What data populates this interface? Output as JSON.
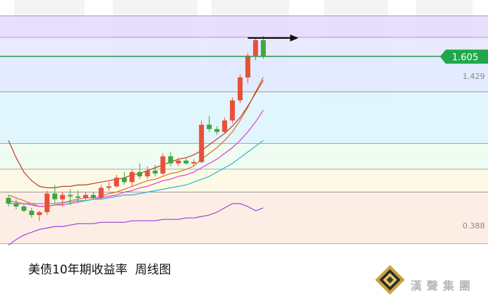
{
  "caption": "美债10年期收益率  周线图",
  "logo": {
    "text": "漢聲集團",
    "icon": "hansheng-diamond-logo"
  },
  "colors": {
    "up": "#e8503a",
    "down": "#3aa83c",
    "ma_short": "#e0701c",
    "ma_mid": "#e23bd1",
    "ma_long": "#2ab2d8",
    "lower_band": "#9a3fe0",
    "upper_band": "#c0392b",
    "level_tag": "#1fa84a",
    "arrow": "#111111"
  },
  "chart_data": {
    "type": "candlestick",
    "title": "美债10年期收益率  周线图",
    "xlabel": "",
    "ylabel": "",
    "ylim": [
      0.23,
      2.0
    ],
    "price_labels": [
      {
        "value": 1.605,
        "text": "1.605",
        "style": "tag"
      },
      {
        "value": 1.429,
        "text": "1.429",
        "style": "plain"
      },
      {
        "value": 0.388,
        "text": "0.388",
        "style": "plain"
      }
    ],
    "bands": [
      {
        "from": 1.74,
        "to": 1.89,
        "color": "#e4d9ff"
      },
      {
        "from": 1.61,
        "to": 1.74,
        "color": "#e6e6ff"
      },
      {
        "from": 1.36,
        "to": 1.61,
        "color": "#dde8ff"
      },
      {
        "from": 1.0,
        "to": 1.36,
        "color": "#dcf3fb"
      },
      {
        "from": 0.82,
        "to": 1.0,
        "color": "#ebfbef"
      },
      {
        "from": 0.66,
        "to": 0.82,
        "color": "#fbf9e3"
      },
      {
        "from": 0.3,
        "to": 0.66,
        "color": "#fdebe0"
      }
    ],
    "candles": [
      {
        "o": 0.62,
        "h": 0.64,
        "l": 0.56,
        "c": 0.58
      },
      {
        "o": 0.58,
        "h": 0.61,
        "l": 0.54,
        "c": 0.56
      },
      {
        "o": 0.56,
        "h": 0.58,
        "l": 0.52,
        "c": 0.53
      },
      {
        "o": 0.53,
        "h": 0.55,
        "l": 0.48,
        "c": 0.5
      },
      {
        "o": 0.5,
        "h": 0.53,
        "l": 0.46,
        "c": 0.52
      },
      {
        "o": 0.52,
        "h": 0.67,
        "l": 0.5,
        "c": 0.65
      },
      {
        "o": 0.65,
        "h": 0.71,
        "l": 0.58,
        "c": 0.61
      },
      {
        "o": 0.61,
        "h": 0.66,
        "l": 0.56,
        "c": 0.64
      },
      {
        "o": 0.64,
        "h": 0.68,
        "l": 0.57,
        "c": 0.63
      },
      {
        "o": 0.63,
        "h": 0.67,
        "l": 0.59,
        "c": 0.62
      },
      {
        "o": 0.62,
        "h": 0.66,
        "l": 0.6,
        "c": 0.64
      },
      {
        "o": 0.64,
        "h": 0.66,
        "l": 0.61,
        "c": 0.62
      },
      {
        "o": 0.62,
        "h": 0.71,
        "l": 0.61,
        "c": 0.69
      },
      {
        "o": 0.69,
        "h": 0.73,
        "l": 0.67,
        "c": 0.7
      },
      {
        "o": 0.7,
        "h": 0.78,
        "l": 0.69,
        "c": 0.76
      },
      {
        "o": 0.76,
        "h": 0.8,
        "l": 0.71,
        "c": 0.73
      },
      {
        "o": 0.73,
        "h": 0.82,
        "l": 0.7,
        "c": 0.8
      },
      {
        "o": 0.8,
        "h": 0.86,
        "l": 0.75,
        "c": 0.77
      },
      {
        "o": 0.77,
        "h": 0.84,
        "l": 0.75,
        "c": 0.81
      },
      {
        "o": 0.81,
        "h": 0.85,
        "l": 0.77,
        "c": 0.79
      },
      {
        "o": 0.79,
        "h": 0.93,
        "l": 0.78,
        "c": 0.91
      },
      {
        "o": 0.91,
        "h": 0.94,
        "l": 0.84,
        "c": 0.86
      },
      {
        "o": 0.86,
        "h": 0.9,
        "l": 0.84,
        "c": 0.88
      },
      {
        "o": 0.88,
        "h": 0.9,
        "l": 0.85,
        "c": 0.86
      },
      {
        "o": 0.86,
        "h": 0.89,
        "l": 0.84,
        "c": 0.87
      },
      {
        "o": 0.87,
        "h": 1.16,
        "l": 0.86,
        "c": 1.13
      },
      {
        "o": 1.13,
        "h": 1.19,
        "l": 1.08,
        "c": 1.1
      },
      {
        "o": 1.1,
        "h": 1.12,
        "l": 1.06,
        "c": 1.08
      },
      {
        "o": 1.08,
        "h": 1.18,
        "l": 1.07,
        "c": 1.16
      },
      {
        "o": 1.16,
        "h": 1.32,
        "l": 1.14,
        "c": 1.3
      },
      {
        "o": 1.3,
        "h": 1.48,
        "l": 1.28,
        "c": 1.46
      },
      {
        "o": 1.46,
        "h": 1.63,
        "l": 1.42,
        "c": 1.61
      },
      {
        "o": 1.61,
        "h": 1.74,
        "l": 1.58,
        "c": 1.72
      },
      {
        "o": 1.72,
        "h": 1.75,
        "l": 1.59,
        "c": 1.605
      }
    ],
    "series": [
      {
        "name": "",
        "color": "#e0701c",
        "values": [
          0.64,
          0.62,
          0.6,
          0.58,
          0.56,
          0.56,
          0.57,
          0.58,
          0.6,
          0.61,
          0.62,
          0.62,
          0.63,
          0.65,
          0.66,
          0.68,
          0.7,
          0.72,
          0.74,
          0.75,
          0.77,
          0.79,
          0.8,
          0.82,
          0.84,
          0.89,
          0.93,
          0.97,
          1.02,
          1.08,
          1.16,
          1.25,
          1.36,
          1.46
        ]
      },
      {
        "name": "",
        "color": "#e23bd1",
        "values": [
          0.6,
          0.59,
          0.58,
          0.57,
          0.56,
          0.56,
          0.57,
          0.57,
          0.58,
          0.59,
          0.6,
          0.61,
          0.62,
          0.63,
          0.64,
          0.66,
          0.67,
          0.69,
          0.7,
          0.72,
          0.74,
          0.75,
          0.77,
          0.78,
          0.8,
          0.83,
          0.86,
          0.89,
          0.93,
          0.97,
          1.02,
          1.08,
          1.15,
          1.23
        ]
      },
      {
        "name": "",
        "color": "#2ab2d8",
        "values": [
          0.58,
          0.58,
          0.58,
          0.58,
          0.58,
          0.58,
          0.58,
          0.59,
          0.59,
          0.6,
          0.6,
          0.61,
          0.61,
          0.62,
          0.63,
          0.64,
          0.64,
          0.65,
          0.66,
          0.67,
          0.68,
          0.69,
          0.7,
          0.71,
          0.73,
          0.75,
          0.77,
          0.8,
          0.83,
          0.86,
          0.9,
          0.94,
          0.98,
          1.02
        ]
      },
      {
        "name": "",
        "color": "#9a3fe0",
        "values": [
          0.29,
          0.33,
          0.36,
          0.38,
          0.4,
          0.41,
          0.42,
          0.42,
          0.43,
          0.44,
          0.44,
          0.44,
          0.45,
          0.45,
          0.45,
          0.45,
          0.46,
          0.46,
          0.46,
          0.46,
          0.47,
          0.47,
          0.47,
          0.48,
          0.48,
          0.49,
          0.5,
          0.52,
          0.55,
          0.58,
          0.58,
          0.56,
          0.53,
          0.55
        ]
      },
      {
        "name": "",
        "color": "#c0392b",
        "values": [
          1.02,
          0.9,
          0.8,
          0.74,
          0.7,
          0.69,
          0.69,
          0.7,
          0.7,
          0.71,
          0.71,
          0.72,
          0.73,
          0.74,
          0.75,
          0.76,
          0.78,
          0.79,
          0.81,
          0.83,
          0.85,
          0.87,
          0.89,
          0.9,
          0.92,
          0.95,
          0.99,
          1.03,
          1.07,
          1.12,
          1.18,
          1.26,
          1.35,
          1.44
        ]
      }
    ],
    "arrow": {
      "from_index": 33,
      "value": 1.735,
      "direction": "right"
    },
    "grid": false,
    "legend": "none"
  }
}
